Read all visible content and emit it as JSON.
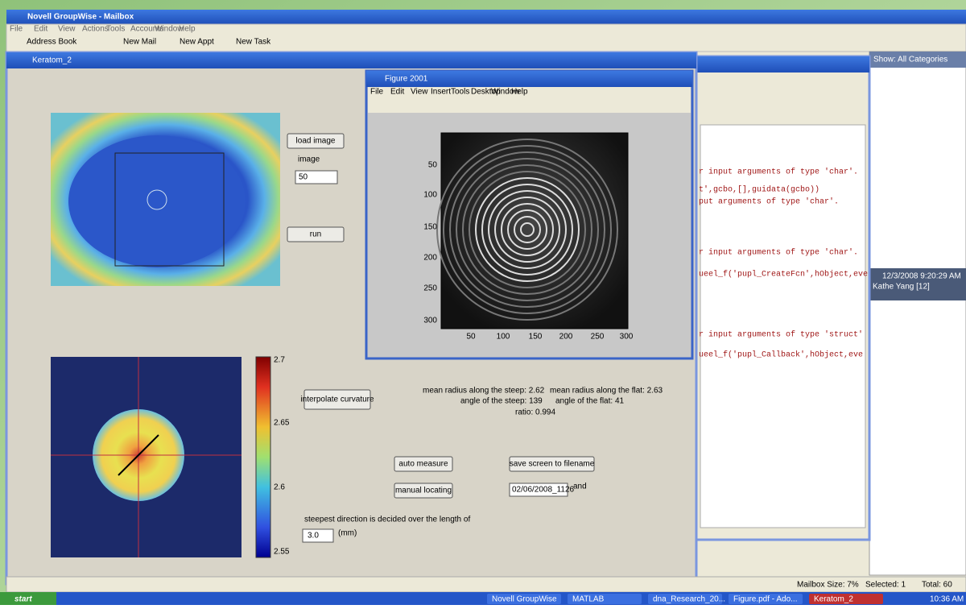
{
  "app": {
    "title": "Novell GroupWise - Mailbox",
    "menu": [
      "File",
      "Edit",
      "View",
      "Actions",
      "Tools",
      "Accounts",
      "Window",
      "Help"
    ],
    "toolbar": [
      "Address Book",
      "New Mail",
      "New Appt",
      "New Task"
    ],
    "show_filter": "Show: All Categories",
    "status": [
      "Mailbox Size: 7%",
      "Selected: 1",
      "Total: 60"
    ],
    "side_items": [
      "12/3/2008 9:20:29 AM",
      "Kathe Yang [12]"
    ]
  },
  "gui": {
    "title": "Keratom_2",
    "load_button": "load image",
    "image_label": "image",
    "image_select": "50",
    "run_button": "run",
    "interpolate_button": "interpolate curvature",
    "results": [
      "mean radius along the steep: 2.62",
      "mean radius along the flat: 2.63",
      "angle of the steep: 139",
      "angle of the flat: 41",
      "ratio: 0.994"
    ],
    "auto_button": "auto measure",
    "manual_button": "manual locating",
    "save_button": "save screen to filename",
    "filename": "02/06/2008_1126",
    "filename_suffix": "and",
    "steepest_label": "steepest direction is decided over the length of",
    "length_value": "3.0",
    "length_unit": "(mm)",
    "colorbar_labels": [
      "2.7",
      "2.65",
      "2.6",
      "2.55"
    ]
  },
  "figure": {
    "title": "Figure 2001",
    "menu": [
      "File",
      "Edit",
      "View",
      "Insert",
      "Tools",
      "Desktop",
      "Window",
      "Help"
    ],
    "yticks": [
      "50",
      "100",
      "150",
      "200",
      "250",
      "300"
    ],
    "xticks": [
      "50",
      "100",
      "150",
      "200",
      "250",
      "300"
    ]
  },
  "editor": {
    "lines": [
      "r input arguments of type 'char'.",
      "t',gcbo,[],guidata(gcbo))",
      "put arguments of type 'char'.",
      "r input arguments of type 'char'.",
      "ueel_f('pupl_CreateFcn',hObject,eve",
      "r input arguments of type 'struct'",
      "ueel_f('pupl_Callback',hObject,eve"
    ]
  },
  "taskbar": {
    "start": "start",
    "items": [
      "Novell GroupWise",
      "MATLAB",
      "dna_Research_20...",
      "Figure.pdf - Ado...",
      "Keratom_2"
    ],
    "clock": "10:36 AM"
  }
}
